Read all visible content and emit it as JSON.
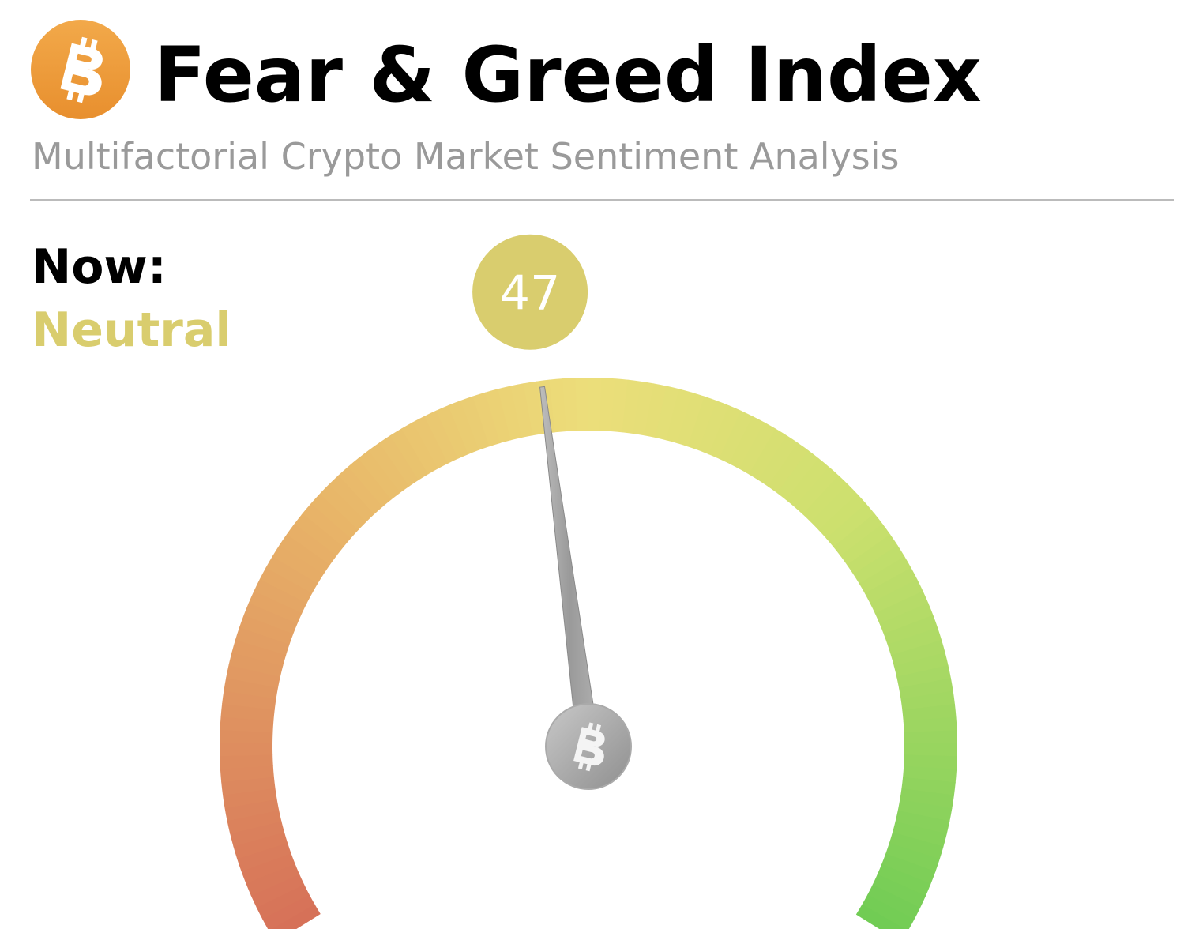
{
  "chart_data": {
    "type": "gauge",
    "title": "Fear & Greed Index",
    "subtitle": "Multifactorial Crypto Market Sentiment Analysis",
    "label": "Now:",
    "classification": "Neutral",
    "value": 47,
    "ylim": [
      0,
      100
    ],
    "color": "#d9cd6e"
  }
}
